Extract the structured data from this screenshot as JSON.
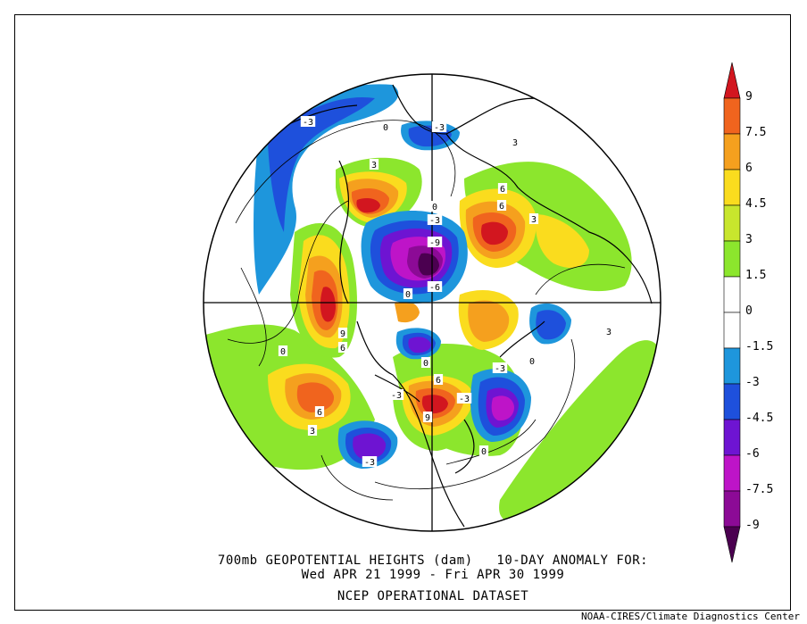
{
  "caption": {
    "line1": "700mb GEOPOTENTIAL HEIGHTS (dam)   10-DAY ANOMALY FOR:",
    "line2": "Wed APR 21 1999 - Fri APR 30 1999",
    "line3": "NCEP OPERATIONAL DATASET"
  },
  "credit": "NOAA-CIRES/Climate Diagnostics Center",
  "colorbar": {
    "levels": [
      "9",
      "7.5",
      "6",
      "4.5",
      "3",
      "1.5",
      "0",
      "-1.5",
      "-3",
      "-4.5",
      "-6",
      "-7.5",
      "-9"
    ],
    "colors": [
      "#d2161f",
      "#f0641e",
      "#f5a01e",
      "#fadc1e",
      "#c8e62d",
      "#8ce62d",
      "#ffffff",
      "#ffffff",
      "#1e96dc",
      "#1e50dc",
      "#6e14d2",
      "#be14c8",
      "#8c0a96",
      "#4b0050"
    ]
  },
  "chart_data": {
    "type": "map",
    "projection": "north polar stereographic",
    "variable": "700mb geopotential height anomaly",
    "units": "dam",
    "contour_interval": 1.5,
    "contour_labels": [
      "-3",
      "0",
      "-3",
      "3",
      "3",
      "0",
      "-3",
      "-9",
      "6",
      "6",
      "3",
      "0",
      "-6",
      "0",
      "9",
      "6",
      "0",
      "-3",
      "3",
      "6",
      "9",
      "-3",
      "0",
      "6",
      "-3",
      "3",
      "0",
      "-3"
    ]
  }
}
